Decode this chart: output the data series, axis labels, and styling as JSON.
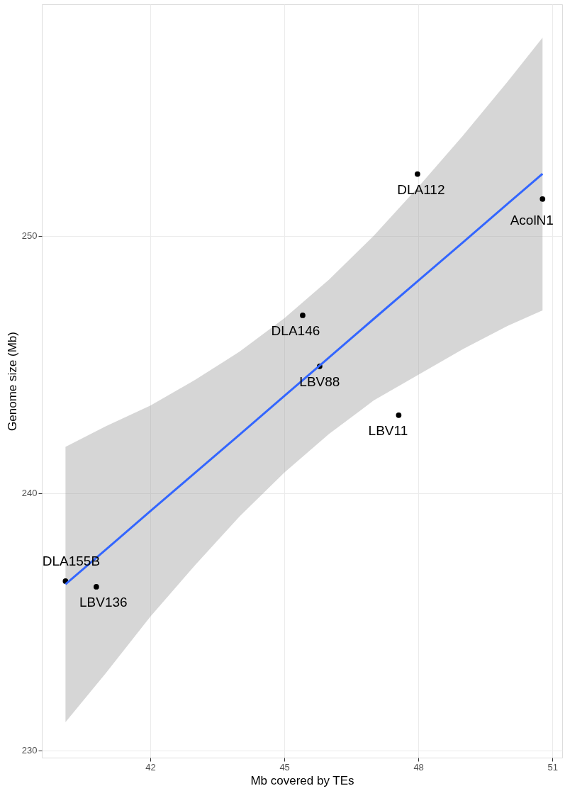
{
  "chart_data": {
    "type": "scatter",
    "xlabel": "Mb covered by TEs",
    "ylabel": "Genome size (Mb)",
    "xlim": [
      39.57,
      51.22
    ],
    "xticks": [
      42,
      45,
      48,
      51
    ],
    "ylim": [
      229.72,
      259.0
    ],
    "yticks": [
      230,
      240,
      250
    ],
    "grid": true,
    "marker": "circle",
    "series": [
      {
        "color": "#000000",
        "x": [
          40.1,
          40.79,
          45.41,
          45.79,
          47.56,
          47.98,
          50.78
        ],
        "values": [
          236.58,
          236.36,
          246.91,
          244.93,
          243.03,
          252.4,
          251.43
        ]
      },
      {
        "type": "line",
        "color": "#3366ff",
        "marker": "none",
        "line_style": "solid",
        "x": [
          40.1,
          41,
          42,
          43,
          44,
          45,
          46,
          47,
          48,
          49,
          50,
          50.78
        ],
        "values": [
          236.46,
          237.8,
          239.3,
          240.79,
          242.28,
          243.78,
          245.27,
          246.77,
          248.26,
          249.75,
          251.25,
          252.41
        ],
        "lower": [
          231.1,
          233.0,
          235.2,
          237.2,
          239.1,
          240.8,
          242.3,
          243.6,
          244.6,
          245.6,
          246.5,
          247.1
        ],
        "upper": [
          241.8,
          242.6,
          243.4,
          244.4,
          245.5,
          246.8,
          248.3,
          250.0,
          251.9,
          253.9,
          256.0,
          257.7
        ]
      }
    ],
    "annotations": [
      {
        "text": "DLA155B",
        "x": 40.1,
        "y": 236.58
      },
      {
        "text": "LBV136",
        "x": 40.79,
        "y": 236.36
      },
      {
        "text": "DLA146",
        "x": 45.41,
        "y": 246.91
      },
      {
        "text": "LBV88",
        "x": 45.79,
        "y": 244.93
      },
      {
        "text": "LBV11",
        "x": 47.56,
        "y": 243.03
      },
      {
        "text": "DLA112",
        "x": 47.98,
        "y": 252.4
      },
      {
        "text": "AcolN1",
        "x": 50.78,
        "y": 251.43
      }
    ]
  }
}
